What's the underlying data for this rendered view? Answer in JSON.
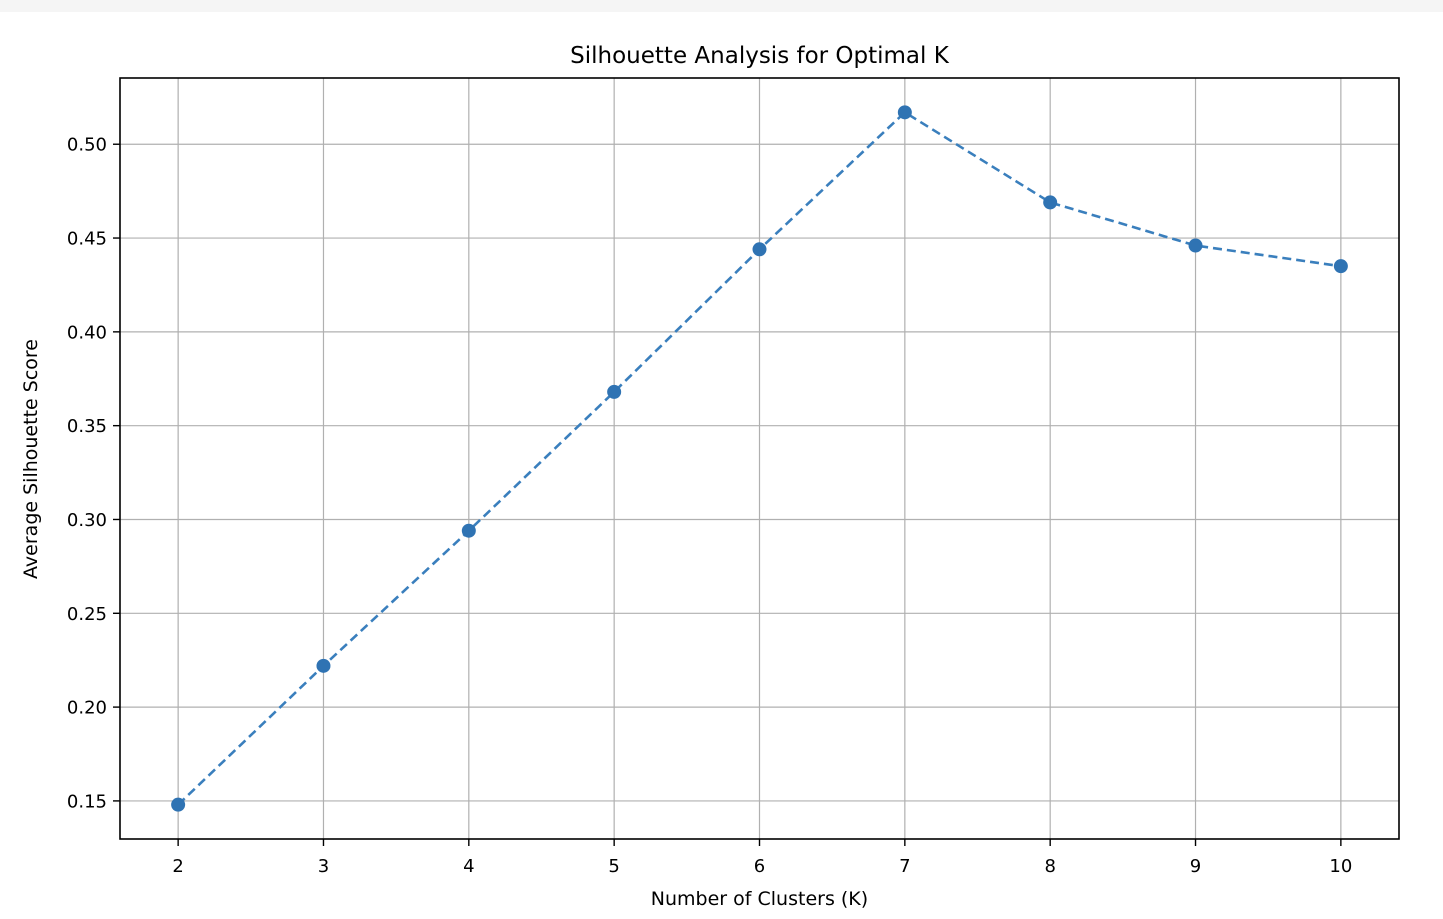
{
  "chart_data": {
    "type": "line",
    "title": "Silhouette Analysis for Optimal K",
    "xlabel": "Number of Clusters (K)",
    "ylabel": "Average Silhouette Score",
    "x": [
      2,
      3,
      4,
      5,
      6,
      7,
      8,
      9,
      10
    ],
    "series": [
      {
        "values": [
          0.148,
          0.222,
          0.294,
          0.368,
          0.444,
          0.517,
          0.469,
          0.446,
          0.435
        ]
      }
    ],
    "xticks": [
      "2",
      "3",
      "4",
      "5",
      "6",
      "7",
      "8",
      "9",
      "10"
    ],
    "yticks": [
      "0.15",
      "0.20",
      "0.25",
      "0.30",
      "0.35",
      "0.40",
      "0.45",
      "0.50"
    ],
    "ytick_values": [
      0.15,
      0.2,
      0.25,
      0.3,
      0.35,
      0.4,
      0.45,
      0.5
    ],
    "xlim": [
      1.6,
      10.4
    ],
    "ylim": [
      0.1297,
      0.5353
    ],
    "grid": true,
    "line_style": "dashed",
    "marker": "circle",
    "colors": {
      "line": "#3a7fbd",
      "marker": "#2f73b3",
      "grid": "#b0b0b0",
      "axes": "#000000"
    }
  }
}
